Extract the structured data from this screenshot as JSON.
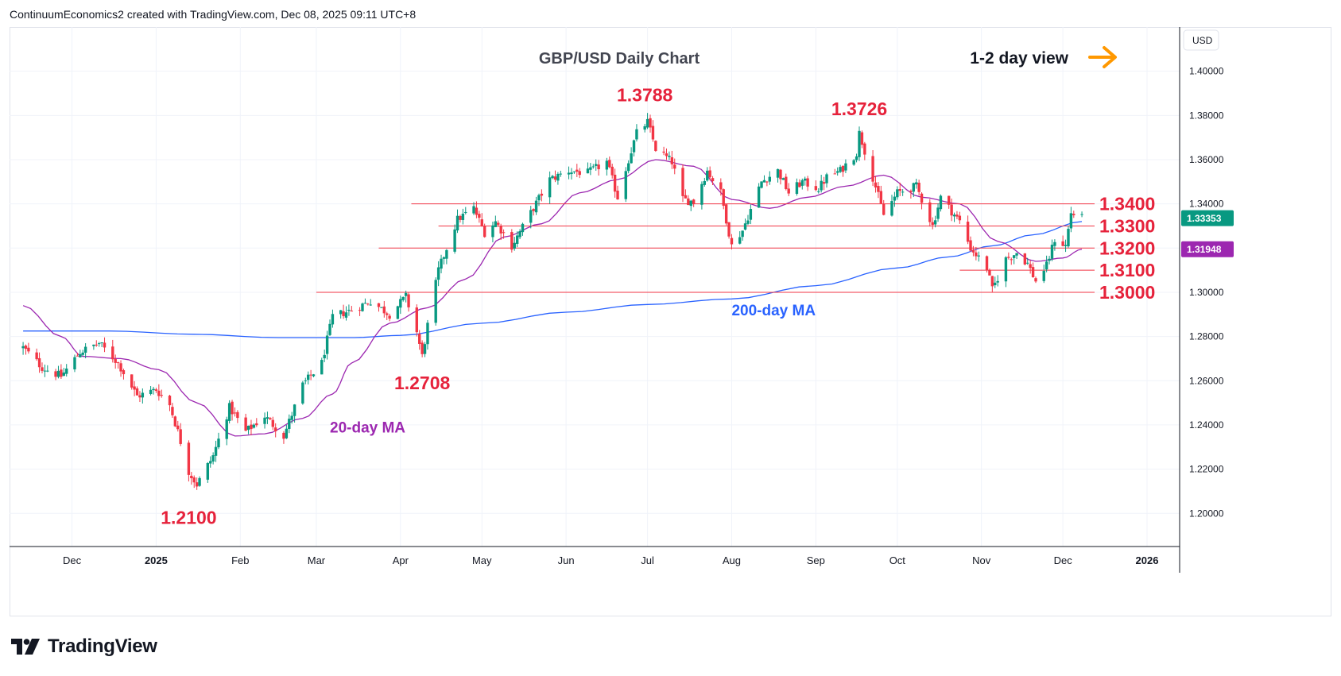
{
  "header": {
    "credit": "ContinuumEconomics2 created with TradingView.com, Dec 08, 2025 09:11 UTC+8"
  },
  "footer": {
    "brand": "TradingView"
  },
  "colors": {
    "up": "#089981",
    "down": "#f23645",
    "ma20": "#9c27b0",
    "ma200": "#2962ff",
    "level_label": "#e6223b",
    "level_line": "#f23645",
    "arrow": "#ff9800",
    "price_badge": "#089981",
    "ma20_badge": "#9c27b0"
  },
  "chart_data": {
    "type": "candlestick",
    "title": "GBP/USD Daily Chart",
    "view_label": "1-2 day view",
    "view_arrow_icon": "right-arrow-icon",
    "currency": "USD",
    "ylim": [
      1.185,
      1.42
    ],
    "y_ticks": [
      "1.40000",
      "1.38000",
      "1.36000",
      "1.34000",
      "1.32000",
      "1.30000",
      "1.28000",
      "1.26000",
      "1.24000",
      "1.22000",
      "1.20000"
    ],
    "x_tick_labels": [
      {
        "label": "Dec",
        "date": "2024-12-01"
      },
      {
        "label": "2025",
        "date": "2025-01-01",
        "bold": true
      },
      {
        "label": "Feb",
        "date": "2025-02-01"
      },
      {
        "label": "Mar",
        "date": "2025-03-01"
      },
      {
        "label": "Apr",
        "date": "2025-04-01"
      },
      {
        "label": "May",
        "date": "2025-05-01"
      },
      {
        "label": "Jun",
        "date": "2025-06-01"
      },
      {
        "label": "Jul",
        "date": "2025-07-01"
      },
      {
        "label": "Aug",
        "date": "2025-08-01"
      },
      {
        "label": "Sep",
        "date": "2025-09-01"
      },
      {
        "label": "Oct",
        "date": "2025-10-01"
      },
      {
        "label": "Nov",
        "date": "2025-11-01"
      },
      {
        "label": "Dec",
        "date": "2025-12-01"
      },
      {
        "label": "2026",
        "date": "2026-01-01",
        "bold": true
      }
    ],
    "close_path": [
      [
        "2024-11-13",
        1.275
      ],
      [
        "2024-11-20",
        1.266
      ],
      [
        "2024-11-27",
        1.262
      ],
      [
        "2024-12-04",
        1.273
      ],
      [
        "2024-12-11",
        1.277
      ],
      [
        "2024-12-18",
        1.268
      ],
      [
        "2024-12-25",
        1.253
      ],
      [
        "2025-01-01",
        1.256
      ],
      [
        "2025-01-06",
        1.249
      ],
      [
        "2025-01-09",
        1.237
      ],
      [
        "2025-01-13",
        1.219
      ],
      [
        "2025-01-16",
        1.213
      ],
      [
        "2025-01-22",
        1.226
      ],
      [
        "2025-01-28",
        1.248
      ],
      [
        "2025-02-03",
        1.237
      ],
      [
        "2025-02-10",
        1.244
      ],
      [
        "2025-02-17",
        1.235
      ],
      [
        "2025-02-24",
        1.258
      ],
      [
        "2025-03-03",
        1.268
      ],
      [
        "2025-03-07",
        1.289
      ],
      [
        "2025-03-14",
        1.292
      ],
      [
        "2025-03-21",
        1.296
      ],
      [
        "2025-03-28",
        1.29
      ],
      [
        "2025-04-03",
        1.298
      ],
      [
        "2025-04-07",
        1.282
      ],
      [
        "2025-04-09",
        1.271
      ],
      [
        "2025-04-11",
        1.285
      ],
      [
        "2025-04-15",
        1.31
      ],
      [
        "2025-04-18",
        1.32
      ],
      [
        "2025-04-22",
        1.333
      ],
      [
        "2025-04-28",
        1.338
      ],
      [
        "2025-05-02",
        1.327
      ],
      [
        "2025-05-06",
        1.332
      ],
      [
        "2025-05-12",
        1.321
      ],
      [
        "2025-05-19",
        1.336
      ],
      [
        "2025-05-26",
        1.351
      ],
      [
        "2025-06-02",
        1.355
      ],
      [
        "2025-06-09",
        1.354
      ],
      [
        "2025-06-16",
        1.359
      ],
      [
        "2025-06-20",
        1.343
      ],
      [
        "2025-06-24",
        1.36
      ],
      [
        "2025-06-27",
        1.372
      ],
      [
        "2025-07-01",
        1.377
      ],
      [
        "2025-07-04",
        1.365
      ],
      [
        "2025-07-10",
        1.359
      ],
      [
        "2025-07-14",
        1.342
      ],
      [
        "2025-07-18",
        1.341
      ],
      [
        "2025-07-23",
        1.355
      ],
      [
        "2025-07-28",
        1.345
      ],
      [
        "2025-08-01",
        1.321
      ],
      [
        "2025-08-05",
        1.328
      ],
      [
        "2025-08-12",
        1.35
      ],
      [
        "2025-08-18",
        1.355
      ],
      [
        "2025-08-22",
        1.345
      ],
      [
        "2025-08-27",
        1.35
      ],
      [
        "2025-09-02",
        1.347
      ],
      [
        "2025-09-05",
        1.352
      ],
      [
        "2025-09-10",
        1.355
      ],
      [
        "2025-09-16",
        1.363
      ],
      [
        "2025-09-17",
        1.372
      ],
      [
        "2025-09-22",
        1.352
      ],
      [
        "2025-09-26",
        1.335
      ],
      [
        "2025-10-01",
        1.345
      ],
      [
        "2025-10-08",
        1.348
      ],
      [
        "2025-10-14",
        1.33
      ],
      [
        "2025-10-17",
        1.343
      ],
      [
        "2025-10-24",
        1.332
      ],
      [
        "2025-10-28",
        1.32
      ],
      [
        "2025-11-03",
        1.311
      ],
      [
        "2025-11-05",
        1.301
      ],
      [
        "2025-11-10",
        1.315
      ],
      [
        "2025-11-14",
        1.318
      ],
      [
        "2025-11-18",
        1.313
      ],
      [
        "2025-11-21",
        1.305
      ],
      [
        "2025-11-25",
        1.312
      ],
      [
        "2025-11-28",
        1.324
      ],
      [
        "2025-12-02",
        1.321
      ],
      [
        "2025-12-04",
        1.336
      ],
      [
        "2025-12-08",
        1.3335
      ]
    ],
    "series": [
      {
        "name": "20-day MA",
        "color_key": "ma20",
        "points": [
          [
            "2024-11-13",
            1.294
          ],
          [
            "2024-11-27",
            1.28
          ],
          [
            "2024-12-05",
            1.271
          ],
          [
            "2024-12-19",
            1.27
          ],
          [
            "2025-01-02",
            1.265
          ],
          [
            "2025-01-16",
            1.25
          ],
          [
            "2025-01-30",
            1.235
          ],
          [
            "2025-02-10",
            1.236
          ],
          [
            "2025-02-24",
            1.243
          ],
          [
            "2025-03-07",
            1.254
          ],
          [
            "2025-03-14",
            1.268
          ],
          [
            "2025-03-28",
            1.286
          ],
          [
            "2025-04-11",
            1.293
          ],
          [
            "2025-04-25",
            1.306
          ],
          [
            "2025-05-09",
            1.325
          ],
          [
            "2025-05-23",
            1.331
          ],
          [
            "2025-06-06",
            1.345
          ],
          [
            "2025-06-20",
            1.351
          ],
          [
            "2025-07-04",
            1.36
          ],
          [
            "2025-07-18",
            1.357
          ],
          [
            "2025-08-01",
            1.342
          ],
          [
            "2025-08-15",
            1.338
          ],
          [
            "2025-08-29",
            1.343
          ],
          [
            "2025-09-12",
            1.348
          ],
          [
            "2025-09-26",
            1.353
          ],
          [
            "2025-10-10",
            1.343
          ],
          [
            "2025-10-24",
            1.34
          ],
          [
            "2025-11-07",
            1.323
          ],
          [
            "2025-11-21",
            1.314
          ],
          [
            "2025-12-01",
            1.3155
          ],
          [
            "2025-12-08",
            1.3195
          ]
        ]
      },
      {
        "name": "200-day MA",
        "color_key": "ma200",
        "points": [
          [
            "2024-11-13",
            1.2825
          ],
          [
            "2024-12-15",
            1.2825
          ],
          [
            "2025-01-15",
            1.281
          ],
          [
            "2025-02-15",
            1.2795
          ],
          [
            "2025-03-15",
            1.2795
          ],
          [
            "2025-04-01",
            1.2805
          ],
          [
            "2025-05-01",
            1.286
          ],
          [
            "2025-06-01",
            1.291
          ],
          [
            "2025-07-01",
            1.2945
          ],
          [
            "2025-08-01",
            1.297
          ],
          [
            "2025-09-01",
            1.303
          ],
          [
            "2025-10-01",
            1.311
          ],
          [
            "2025-10-20",
            1.316
          ],
          [
            "2025-11-05",
            1.321
          ],
          [
            "2025-11-20",
            1.326
          ],
          [
            "2025-12-08",
            1.332
          ]
        ]
      }
    ],
    "levels": [
      {
        "value": 1.34,
        "label": "1.3400",
        "from": "2025-04-05"
      },
      {
        "value": 1.33,
        "label": "1.3300",
        "from": "2025-04-15"
      },
      {
        "value": 1.32,
        "label": "1.3200",
        "from": "2025-03-24"
      },
      {
        "value": 1.31,
        "label": "1.3100",
        "from": "2025-10-24"
      },
      {
        "value": 1.3,
        "label": "1.3000",
        "from": "2025-03-01"
      }
    ],
    "annotations": [
      {
        "text": "1.3788",
        "date": "2025-06-30",
        "value": 1.3788,
        "place": "above"
      },
      {
        "text": "1.3726",
        "date": "2025-09-17",
        "value": 1.3726,
        "place": "above"
      },
      {
        "text": "1.2708",
        "date": "2025-04-09",
        "value": 1.2708,
        "place": "below"
      },
      {
        "text": "1.2100",
        "date": "2025-01-13",
        "value": 1.21,
        "place": "below"
      }
    ],
    "ma_labels": [
      {
        "text": "20-day MA",
        "color_key": "ma20",
        "date": "2025-03-06",
        "value": 1.2365
      },
      {
        "text": "200-day MA",
        "color_key": "ma200",
        "date": "2025-08-01",
        "value": 1.2895
      }
    ],
    "badges": [
      {
        "value": 1.33353,
        "label": "1.33353",
        "color_key": "price_badge"
      },
      {
        "value": 1.31948,
        "label": "1.31948",
        "color_key": "ma20_badge"
      }
    ]
  }
}
